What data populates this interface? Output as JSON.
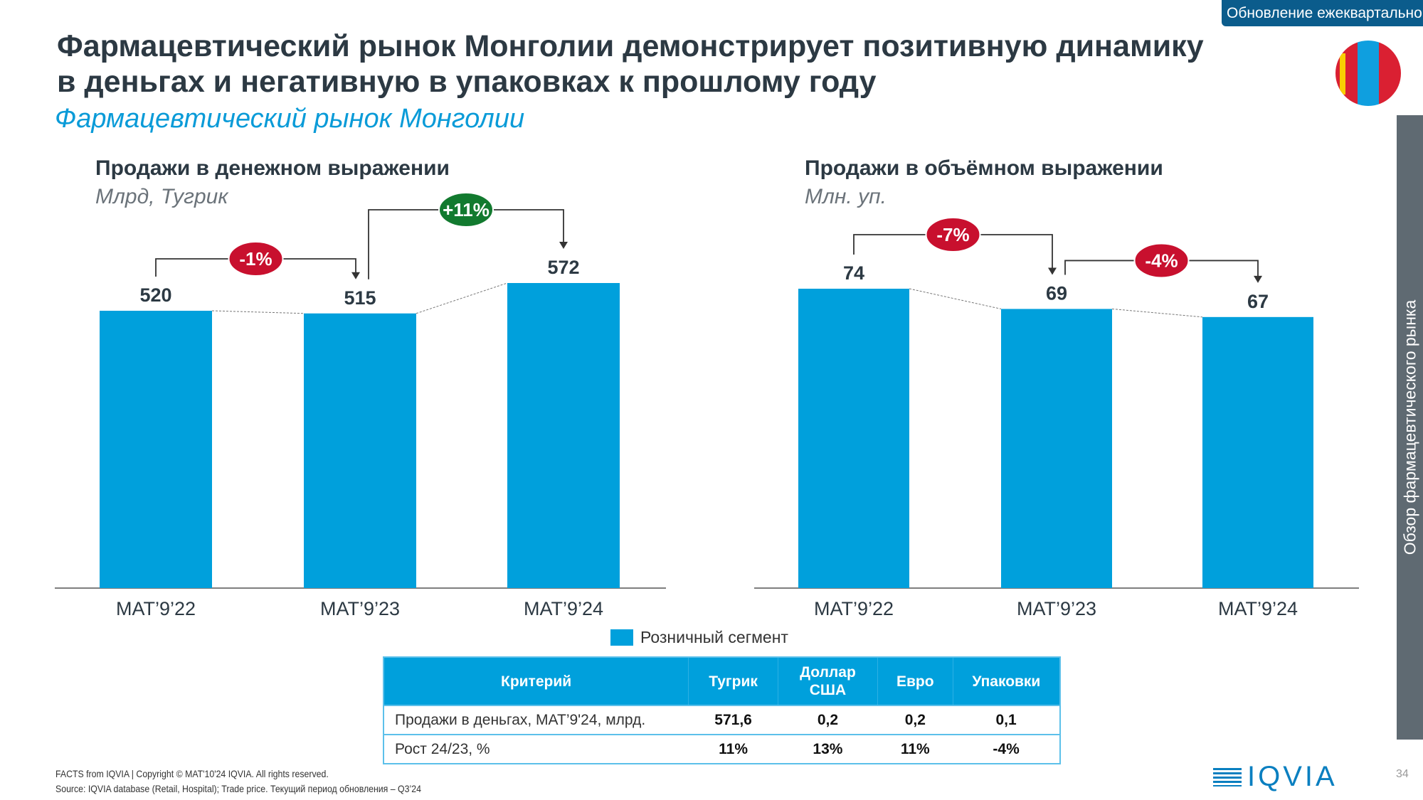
{
  "badge": "Обновление ежеквартально",
  "title_line1": "Фармацевтический рынок Монголии демонстрирует позитивную динамику",
  "title_line2": "в деньгах и негативную в упаковках к прошлому году",
  "subtitle": "Фармацевтический рынок Монголии",
  "sidebar_text": "Обзор фармацевтического рынка",
  "colors": {
    "bar": "#00a0dc",
    "neg": "#c8102e",
    "pos": "#127a2f"
  },
  "chart_data": [
    {
      "type": "bar",
      "title": "Продажи в денежном выражении",
      "ylabel": "Млрд, Тугрик",
      "categories": [
        "MAT’9’22",
        "MAT’9’23",
        "MAT’9’24"
      ],
      "values": [
        520,
        515,
        572
      ],
      "value_labels": [
        "520",
        "515",
        "572"
      ],
      "series_name": "Розничный сегмент",
      "ylim": [
        0,
        572
      ],
      "changes": [
        {
          "from": 0,
          "to": 1,
          "label": "-1%",
          "sign": "neg"
        },
        {
          "from": 1,
          "to": 2,
          "label": "+11%",
          "sign": "pos"
        }
      ]
    },
    {
      "type": "bar",
      "title": "Продажи в объёмном выражении",
      "ylabel": "Млн. уп.",
      "categories": [
        "MAT’9’22",
        "MAT’9’23",
        "MAT’9’24"
      ],
      "values": [
        74,
        69,
        67
      ],
      "value_labels": [
        "74",
        "69",
        "67"
      ],
      "series_name": "Розничный сегмент",
      "ylim": [
        0,
        74
      ],
      "changes": [
        {
          "from": 0,
          "to": 1,
          "label": "-7%",
          "sign": "neg"
        },
        {
          "from": 1,
          "to": 2,
          "label": "-4%",
          "sign": "neg"
        }
      ]
    }
  ],
  "legend": "Розничный сегмент",
  "table": {
    "headers": [
      "Критерий",
      "Тугрик",
      "Доллар США",
      "Евро",
      "Упаковки"
    ],
    "rows": [
      [
        "Продажи в деньгах, MAT’9'24, млрд.",
        "571,6",
        "0,2",
        "0,2",
        "0,1"
      ],
      [
        "Рост 24/23, %",
        "11%",
        "13%",
        "11%",
        "-4%"
      ]
    ]
  },
  "footer": {
    "line1": "FACTS from IQVIA | Copyright © MAT'10'24 IQVIA. All rights reserved.",
    "line2": "Source: IQVIA database (Retail, Hospital); Trade price. Текущий период обновления – Q3’24"
  },
  "logo": "IQVIA",
  "page_number": "34"
}
